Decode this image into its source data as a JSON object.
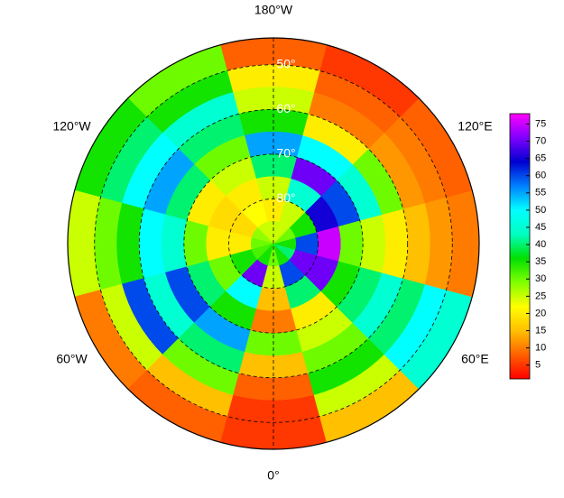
{
  "chart_data": {
    "type": "polar-map",
    "lat_edges": [
      44,
      50,
      55,
      60,
      65,
      70,
      75,
      80,
      85,
      90
    ],
    "lon_edges": [
      -15,
      15,
      45,
      75,
      105,
      135,
      165,
      195,
      225,
      255,
      285,
      315,
      345
    ],
    "values": [
      [
        5,
        15,
        45,
        10,
        8,
        5,
        8,
        30,
        35,
        25,
        10,
        8
      ],
      [
        5,
        25,
        50,
        12,
        10,
        8,
        20,
        35,
        40,
        30,
        25,
        15
      ],
      [
        8,
        35,
        40,
        15,
        12,
        10,
        25,
        45,
        50,
        35,
        60,
        30
      ],
      [
        15,
        30,
        45,
        20,
        30,
        20,
        35,
        40,
        55,
        50,
        45,
        40
      ],
      [
        30,
        25,
        40,
        25,
        45,
        50,
        55,
        30,
        40,
        45,
        60,
        55
      ],
      [
        10,
        20,
        35,
        30,
        60,
        70,
        40,
        25,
        20,
        30,
        40,
        35
      ],
      [
        15,
        40,
        70,
        75,
        65,
        45,
        25,
        20,
        18,
        20,
        30,
        50
      ],
      [
        25,
        60,
        70,
        60,
        35,
        25,
        20,
        22,
        18,
        20,
        35,
        70
      ],
      [
        30,
        35,
        40,
        35,
        30,
        25,
        25,
        25,
        28,
        30,
        32,
        35
      ]
    ],
    "lon_ticks": [
      {
        "value": 180,
        "label": "180°W"
      },
      {
        "value": -120,
        "label": "120°W"
      },
      {
        "value": 120,
        "label": "120°E"
      },
      {
        "value": -60,
        "label": "60°W"
      },
      {
        "value": 60,
        "label": "60°E"
      },
      {
        "value": 0,
        "label": "0°"
      }
    ],
    "lat_ticks": [
      {
        "value": 50,
        "label": "50°"
      },
      {
        "value": 60,
        "label": "60°"
      },
      {
        "value": 70,
        "label": "70°"
      },
      {
        "value": 80,
        "label": "80°"
      }
    ],
    "clim": [
      1,
      78
    ],
    "cticks": [
      5,
      10,
      15,
      20,
      25,
      30,
      35,
      40,
      45,
      50,
      55,
      60,
      65,
      70,
      75
    ],
    "colormap": [
      "#ff0000",
      "#ff6000",
      "#ffc000",
      "#ffff00",
      "#80ff00",
      "#00e000",
      "#00ffc0",
      "#00ffff",
      "#0080ff",
      "#0000d0",
      "#8000ff",
      "#ff00ff"
    ]
  }
}
